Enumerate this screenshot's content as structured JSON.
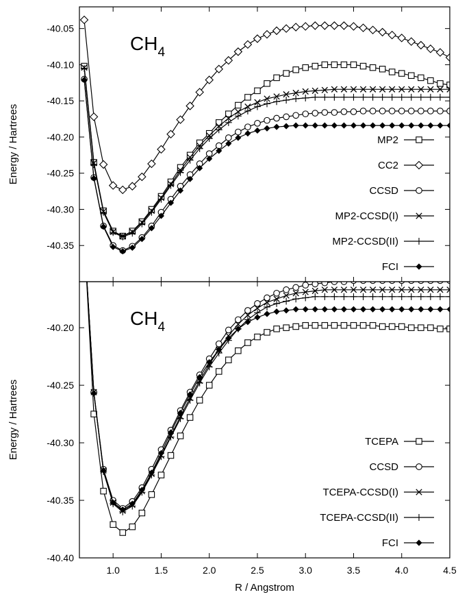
{
  "chart_data": [
    {
      "type": "line",
      "panel": "top",
      "annotation": {
        "main": "CH",
        "sub": "4"
      },
      "ylabel": "Energy / Hartrees",
      "xlabel": "",
      "xlim": [
        0.65,
        4.5
      ],
      "ylim": [
        -40.4,
        -40.02
      ],
      "yticks": [
        "-40.05",
        "-40.10",
        "-40.15",
        "-40.20",
        "-40.25",
        "-40.30",
        "-40.35"
      ],
      "ytick_values": [
        -40.05,
        -40.1,
        -40.15,
        -40.2,
        -40.25,
        -40.3,
        -40.35
      ],
      "grid": false,
      "legend_position": "lower-right",
      "series": [
        {
          "name": "MP2",
          "marker": "square",
          "x": [
            0.7,
            0.8,
            0.9,
            1.0,
            1.1,
            1.2,
            1.3,
            1.4,
            1.5,
            1.6,
            1.7,
            1.8,
            1.9,
            2.0,
            2.1,
            2.2,
            2.3,
            2.4,
            2.5,
            2.6,
            2.7,
            2.8,
            2.9,
            3.0,
            3.1,
            3.2,
            3.3,
            3.4,
            3.5,
            3.6,
            3.7,
            3.8,
            3.9,
            4.0,
            4.1,
            4.2,
            4.3,
            4.4,
            4.5
          ],
          "y": [
            -40.102,
            -40.235,
            -40.302,
            -40.33,
            -40.337,
            -40.33,
            -40.317,
            -40.3,
            -40.282,
            -40.262,
            -40.242,
            -40.225,
            -40.208,
            -40.195,
            -40.18,
            -40.168,
            -40.156,
            -40.145,
            -40.136,
            -40.126,
            -40.118,
            -40.112,
            -40.107,
            -40.104,
            -40.102,
            -40.1,
            -40.1,
            -40.1,
            -40.1,
            -40.102,
            -40.104,
            -40.106,
            -40.11,
            -40.112,
            -40.115,
            -40.118,
            -40.122,
            -40.126,
            -40.128
          ]
        },
        {
          "name": "CC2",
          "marker": "diamond",
          "x": [
            0.7,
            0.8,
            0.9,
            1.0,
            1.1,
            1.2,
            1.3,
            1.4,
            1.5,
            1.6,
            1.7,
            1.8,
            1.9,
            2.0,
            2.1,
            2.2,
            2.3,
            2.4,
            2.5,
            2.6,
            2.7,
            2.8,
            2.9,
            3.0,
            3.1,
            3.2,
            3.3,
            3.4,
            3.5,
            3.6,
            3.7,
            3.8,
            3.9,
            4.0,
            4.1,
            4.2,
            4.3,
            4.4,
            4.5
          ],
          "y": [
            -40.038,
            -40.172,
            -40.238,
            -40.267,
            -40.273,
            -40.268,
            -40.255,
            -40.237,
            -40.217,
            -40.196,
            -40.176,
            -40.157,
            -40.138,
            -40.121,
            -40.106,
            -40.094,
            -40.082,
            -40.072,
            -40.064,
            -40.058,
            -40.053,
            -40.05,
            -40.048,
            -40.047,
            -40.046,
            -40.046,
            -40.046,
            -40.046,
            -40.047,
            -40.049,
            -40.052,
            -40.055,
            -40.059,
            -40.063,
            -40.068,
            -40.073,
            -40.078,
            -40.083,
            -40.09
          ]
        },
        {
          "name": "CCSD",
          "marker": "circle",
          "x": [
            0.7,
            0.8,
            0.9,
            1.0,
            1.1,
            1.2,
            1.3,
            1.4,
            1.5,
            1.6,
            1.7,
            1.8,
            1.9,
            2.0,
            2.1,
            2.2,
            2.3,
            2.4,
            2.5,
            2.6,
            2.7,
            2.8,
            2.9,
            3.0,
            3.1,
            3.2,
            3.3,
            3.4,
            3.5,
            3.6,
            3.7,
            3.8,
            3.9,
            4.0,
            4.1,
            4.2,
            4.3,
            4.4,
            4.5
          ],
          "y": [
            -40.12,
            -40.256,
            -40.323,
            -40.35,
            -40.357,
            -40.351,
            -40.339,
            -40.323,
            -40.304,
            -40.286,
            -40.268,
            -40.252,
            -40.237,
            -40.223,
            -40.212,
            -40.201,
            -40.193,
            -40.186,
            -40.181,
            -40.177,
            -40.174,
            -40.172,
            -40.17,
            -40.168,
            -40.167,
            -40.166,
            -40.166,
            -40.165,
            -40.165,
            -40.164,
            -40.164,
            -40.164,
            -40.164,
            -40.164,
            -40.164,
            -40.164,
            -40.164,
            -40.164,
            -40.164
          ]
        },
        {
          "name": "MP2-CCSD(I)",
          "marker": "cross",
          "x": [
            0.7,
            0.8,
            0.9,
            1.0,
            1.1,
            1.2,
            1.3,
            1.4,
            1.5,
            1.6,
            1.7,
            1.8,
            1.9,
            2.0,
            2.1,
            2.2,
            2.3,
            2.4,
            2.5,
            2.6,
            2.7,
            2.8,
            2.9,
            3.0,
            3.1,
            3.2,
            3.3,
            3.4,
            3.5,
            3.6,
            3.7,
            3.8,
            3.9,
            4.0,
            4.1,
            4.2,
            4.3,
            4.4,
            4.5
          ],
          "y": [
            -40.104,
            -40.236,
            -40.303,
            -40.331,
            -40.337,
            -40.331,
            -40.318,
            -40.302,
            -40.284,
            -40.265,
            -40.246,
            -40.228,
            -40.212,
            -40.198,
            -40.185,
            -40.174,
            -40.165,
            -40.158,
            -40.152,
            -40.147,
            -40.144,
            -40.141,
            -40.139,
            -40.137,
            -40.136,
            -40.135,
            -40.134,
            -40.134,
            -40.134,
            -40.134,
            -40.134,
            -40.134,
            -40.134,
            -40.134,
            -40.134,
            -40.134,
            -40.134,
            -40.134,
            -40.134
          ]
        },
        {
          "name": "MP2-CCSD(II)",
          "marker": "plus",
          "x": [
            0.7,
            0.8,
            0.9,
            1.0,
            1.1,
            1.2,
            1.3,
            1.4,
            1.5,
            1.6,
            1.7,
            1.8,
            1.9,
            2.0,
            2.1,
            2.2,
            2.3,
            2.4,
            2.5,
            2.6,
            2.7,
            2.8,
            2.9,
            3.0,
            3.1,
            3.2,
            3.3,
            3.4,
            3.5,
            3.6,
            3.7,
            3.8,
            3.9,
            4.0,
            4.1,
            4.2,
            4.3,
            4.4,
            4.5
          ],
          "y": [
            -40.105,
            -40.238,
            -40.304,
            -40.332,
            -40.338,
            -40.333,
            -40.32,
            -40.304,
            -40.286,
            -40.267,
            -40.249,
            -40.232,
            -40.216,
            -40.202,
            -40.19,
            -40.18,
            -40.171,
            -40.164,
            -40.158,
            -40.154,
            -40.151,
            -40.149,
            -40.147,
            -40.146,
            -40.145,
            -40.145,
            -40.145,
            -40.145,
            -40.145,
            -40.145,
            -40.145,
            -40.145,
            -40.145,
            -40.145,
            -40.145,
            -40.145,
            -40.145,
            -40.145,
            -40.145
          ]
        },
        {
          "name": "FCI",
          "marker": "filled-diamond",
          "x": [
            0.7,
            0.8,
            0.9,
            1.0,
            1.1,
            1.2,
            1.3,
            1.4,
            1.5,
            1.6,
            1.7,
            1.8,
            1.9,
            2.0,
            2.1,
            2.2,
            2.3,
            2.4,
            2.5,
            2.6,
            2.7,
            2.8,
            2.9,
            3.0,
            3.1,
            3.2,
            3.3,
            3.4,
            3.5,
            3.6,
            3.7,
            3.8,
            3.9,
            4.0,
            4.1,
            4.2,
            4.3,
            4.4,
            4.5
          ],
          "y": [
            -40.121,
            -40.257,
            -40.324,
            -40.352,
            -40.358,
            -40.353,
            -40.341,
            -40.326,
            -40.309,
            -40.291,
            -40.274,
            -40.258,
            -40.243,
            -40.23,
            -40.219,
            -40.209,
            -40.201,
            -40.195,
            -40.191,
            -40.188,
            -40.186,
            -40.185,
            -40.184,
            -40.184,
            -40.184,
            -40.184,
            -40.184,
            -40.184,
            -40.184,
            -40.184,
            -40.184,
            -40.184,
            -40.184,
            -40.184,
            -40.184,
            -40.184,
            -40.184,
            -40.184,
            -40.184
          ]
        }
      ]
    },
    {
      "type": "line",
      "panel": "bottom",
      "annotation": {
        "main": "CH",
        "sub": "4"
      },
      "ylabel": "Energy / Hartrees",
      "xlabel": "R / Angstrom",
      "xlim": [
        0.65,
        4.5
      ],
      "ylim": [
        -40.4,
        -40.16
      ],
      "yticks": [
        "-40.20",
        "-40.25",
        "-40.30",
        "-40.35",
        "-40.40"
      ],
      "ytick_values": [
        -40.2,
        -40.25,
        -40.3,
        -40.35,
        -40.4
      ],
      "xticks": [
        "1.0",
        "1.5",
        "2.0",
        "2.5",
        "3.0",
        "3.5",
        "4.0",
        "4.5"
      ],
      "xtick_values": [
        1.0,
        1.5,
        2.0,
        2.5,
        3.0,
        3.5,
        4.0,
        4.5
      ],
      "grid": false,
      "legend_position": "lower-right",
      "series": [
        {
          "name": "TCEPA",
          "marker": "square",
          "x": [
            0.7,
            0.8,
            0.9,
            1.0,
            1.1,
            1.2,
            1.3,
            1.4,
            1.5,
            1.6,
            1.7,
            1.8,
            1.9,
            2.0,
            2.1,
            2.2,
            2.3,
            2.4,
            2.5,
            2.6,
            2.7,
            2.8,
            2.9,
            3.0,
            3.1,
            3.2,
            3.3,
            3.4,
            3.5,
            3.6,
            3.7,
            3.8,
            3.9,
            4.0,
            4.1,
            4.2,
            4.3,
            4.4,
            4.5
          ],
          "y": [
            -40.12,
            -40.275,
            -40.342,
            -40.371,
            -40.378,
            -40.373,
            -40.361,
            -40.345,
            -40.328,
            -40.311,
            -40.294,
            -40.278,
            -40.263,
            -40.25,
            -40.238,
            -40.228,
            -40.22,
            -40.213,
            -40.208,
            -40.204,
            -40.201,
            -40.2,
            -40.199,
            -40.198,
            -40.198,
            -40.198,
            -40.198,
            -40.198,
            -40.198,
            -40.198,
            -40.198,
            -40.199,
            -40.199,
            -40.199,
            -40.2,
            -40.2,
            -40.2,
            -40.201,
            -40.201
          ]
        },
        {
          "name": "CCSD",
          "marker": "circle",
          "x": [
            0.7,
            0.8,
            0.9,
            1.0,
            1.1,
            1.2,
            1.3,
            1.4,
            1.5,
            1.6,
            1.7,
            1.8,
            1.9,
            2.0,
            2.1,
            2.2,
            2.3,
            2.4,
            2.5,
            2.6,
            2.7,
            2.8,
            2.9,
            3.0,
            3.1,
            3.2,
            3.3,
            3.4,
            3.5,
            3.6,
            3.7,
            3.8,
            3.9,
            4.0,
            4.1,
            4.2,
            4.3,
            4.4,
            4.5
          ],
          "y": [
            -40.12,
            -40.256,
            -40.323,
            -40.35,
            -40.357,
            -40.351,
            -40.339,
            -40.323,
            -40.306,
            -40.289,
            -40.272,
            -40.256,
            -40.241,
            -40.227,
            -40.214,
            -40.202,
            -40.193,
            -40.185,
            -40.179,
            -40.174,
            -40.17,
            -40.167,
            -40.165,
            -40.163,
            -40.162,
            -40.161,
            -40.16,
            -40.16,
            -40.159,
            -40.159,
            -40.159,
            -40.159,
            -40.159,
            -40.159,
            -40.159,
            -40.159,
            -40.159,
            -40.159,
            -40.159
          ]
        },
        {
          "name": "TCEPA-CCSD(I)",
          "marker": "cross",
          "x": [
            0.7,
            0.8,
            0.9,
            1.0,
            1.1,
            1.2,
            1.3,
            1.4,
            1.5,
            1.6,
            1.7,
            1.8,
            1.9,
            2.0,
            2.1,
            2.2,
            2.3,
            2.4,
            2.5,
            2.6,
            2.7,
            2.8,
            2.9,
            3.0,
            3.1,
            3.2,
            3.3,
            3.4,
            3.5,
            3.6,
            3.7,
            3.8,
            3.9,
            4.0,
            4.1,
            4.2,
            4.3,
            4.4,
            4.5
          ],
          "y": [
            -40.122,
            -40.256,
            -40.324,
            -40.352,
            -40.359,
            -40.354,
            -40.342,
            -40.327,
            -40.311,
            -40.294,
            -40.277,
            -40.261,
            -40.246,
            -40.232,
            -40.219,
            -40.207,
            -40.197,
            -40.189,
            -40.183,
            -40.178,
            -40.175,
            -40.172,
            -40.17,
            -40.169,
            -40.168,
            -40.167,
            -40.167,
            -40.167,
            -40.167,
            -40.167,
            -40.167,
            -40.167,
            -40.167,
            -40.167,
            -40.167,
            -40.167,
            -40.167,
            -40.167,
            -40.167
          ]
        },
        {
          "name": "TCEPA-CCSD(II)",
          "marker": "plus",
          "x": [
            0.7,
            0.8,
            0.9,
            1.0,
            1.1,
            1.2,
            1.3,
            1.4,
            1.5,
            1.6,
            1.7,
            1.8,
            1.9,
            2.0,
            2.1,
            2.2,
            2.3,
            2.4,
            2.5,
            2.6,
            2.7,
            2.8,
            2.9,
            3.0,
            3.1,
            3.2,
            3.3,
            3.4,
            3.5,
            3.6,
            3.7,
            3.8,
            3.9,
            4.0,
            4.1,
            4.2,
            4.3,
            4.4,
            4.5
          ],
          "y": [
            -40.122,
            -40.257,
            -40.325,
            -40.353,
            -40.36,
            -40.355,
            -40.343,
            -40.328,
            -40.312,
            -40.295,
            -40.279,
            -40.263,
            -40.248,
            -40.234,
            -40.222,
            -40.211,
            -40.201,
            -40.193,
            -40.187,
            -40.182,
            -40.179,
            -40.177,
            -40.175,
            -40.174,
            -40.173,
            -40.173,
            -40.173,
            -40.173,
            -40.173,
            -40.173,
            -40.173,
            -40.173,
            -40.173,
            -40.173,
            -40.173,
            -40.173,
            -40.173,
            -40.173,
            -40.173
          ]
        },
        {
          "name": "FCI",
          "marker": "filled-diamond",
          "x": [
            0.7,
            0.8,
            0.9,
            1.0,
            1.1,
            1.2,
            1.3,
            1.4,
            1.5,
            1.6,
            1.7,
            1.8,
            1.9,
            2.0,
            2.1,
            2.2,
            2.3,
            2.4,
            2.5,
            2.6,
            2.7,
            2.8,
            2.9,
            3.0,
            3.1,
            3.2,
            3.3,
            3.4,
            3.5,
            3.6,
            3.7,
            3.8,
            3.9,
            4.0,
            4.1,
            4.2,
            4.3,
            4.4,
            4.5
          ],
          "y": [
            -40.121,
            -40.257,
            -40.324,
            -40.352,
            -40.358,
            -40.353,
            -40.341,
            -40.326,
            -40.309,
            -40.291,
            -40.274,
            -40.258,
            -40.243,
            -40.23,
            -40.219,
            -40.209,
            -40.201,
            -40.195,
            -40.191,
            -40.188,
            -40.186,
            -40.185,
            -40.184,
            -40.184,
            -40.184,
            -40.184,
            -40.184,
            -40.184,
            -40.184,
            -40.184,
            -40.184,
            -40.184,
            -40.184,
            -40.184,
            -40.184,
            -40.184,
            -40.184,
            -40.184,
            -40.184
          ]
        }
      ]
    }
  ]
}
